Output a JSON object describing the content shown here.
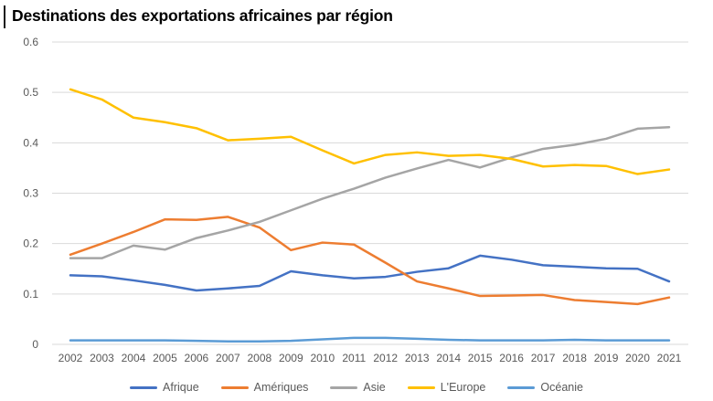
{
  "title": "Destinations des exportations africaines par région",
  "colors": {
    "title_text": "#000000",
    "axis_text": "#595959",
    "gridline": "#D9D9D9",
    "background": "#FFFFFF"
  },
  "chart_data": {
    "type": "line",
    "title": "Destinations des exportations africaines par région",
    "xlabel": "",
    "ylabel": "",
    "grid": "horizontal",
    "legend_position": "bottom",
    "ylim": [
      0,
      0.6
    ],
    "yticks": [
      0,
      0.1,
      0.2,
      0.3,
      0.4,
      0.5,
      0.6
    ],
    "ytick_labels": [
      "0",
      "0.1",
      "0.2",
      "0.3",
      "0.4",
      "0.5",
      "0.6"
    ],
    "x": [
      2002,
      2003,
      2004,
      2005,
      2006,
      2007,
      2008,
      2009,
      2010,
      2011,
      2012,
      2013,
      2014,
      2015,
      2016,
      2017,
      2018,
      2019,
      2020,
      2021
    ],
    "series": [
      {
        "name": "Afrique",
        "color": "#4472C4",
        "values": [
          0.137,
          0.135,
          0.127,
          0.118,
          0.107,
          0.111,
          0.116,
          0.145,
          0.137,
          0.131,
          0.134,
          0.144,
          0.151,
          0.176,
          0.168,
          0.157,
          0.154,
          0.151,
          0.15,
          0.125
        ]
      },
      {
        "name": "Amériques",
        "color": "#ED7D31",
        "values": [
          0.178,
          0.2,
          0.223,
          0.248,
          0.247,
          0.253,
          0.232,
          0.187,
          0.202,
          0.198,
          0.162,
          0.125,
          0.111,
          0.096,
          0.097,
          0.098,
          0.088,
          0.084,
          0.08,
          0.093
        ]
      },
      {
        "name": "Asie",
        "color": "#A5A5A5",
        "values": [
          0.171,
          0.171,
          0.196,
          0.188,
          0.211,
          0.226,
          0.243,
          0.266,
          0.289,
          0.309,
          0.331,
          0.349,
          0.366,
          0.351,
          0.371,
          0.388,
          0.396,
          0.408,
          0.428,
          0.431
        ]
      },
      {
        "name": "L'Europe",
        "color": "#FFC000",
        "values": [
          0.506,
          0.486,
          0.45,
          0.441,
          0.429,
          0.405,
          0.408,
          0.412,
          0.385,
          0.359,
          0.376,
          0.381,
          0.374,
          0.376,
          0.368,
          0.353,
          0.356,
          0.354,
          0.338,
          0.347
        ]
      },
      {
        "name": "Océanie",
        "color": "#5B9BD5",
        "values": [
          0.008,
          0.008,
          0.008,
          0.008,
          0.007,
          0.006,
          0.006,
          0.007,
          0.01,
          0.013,
          0.013,
          0.011,
          0.009,
          0.008,
          0.008,
          0.008,
          0.009,
          0.008,
          0.008,
          0.008
        ]
      }
    ]
  }
}
